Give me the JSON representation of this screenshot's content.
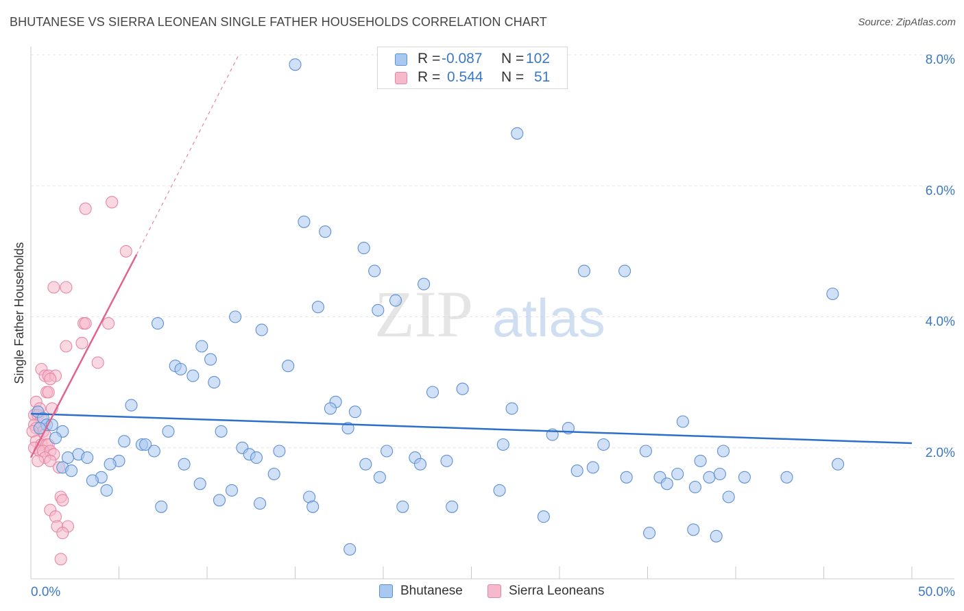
{
  "header": {
    "title": "BHUTANESE VS SIERRA LEONEAN SINGLE FATHER HOUSEHOLDS CORRELATION CHART",
    "source": "Source: ZipAtlas.com"
  },
  "watermark": {
    "zip": "ZIP",
    "atlas": "atlas"
  },
  "legend": {
    "rows": [
      {
        "r_label": "R =",
        "r_value": "-0.087",
        "n_label": "N =",
        "n_value": "102"
      },
      {
        "r_label": "R =",
        "r_value": "0.544",
        "n_label": "N =",
        "n_value": "51"
      }
    ],
    "bottom": [
      "Bhutanese",
      "Sierra Leoneans"
    ]
  },
  "colors": {
    "blue_fill": "#a9c8f0",
    "blue_stroke": "#5d8fd4",
    "blue_line": "#2c6fcb",
    "pink_fill": "#f6b8cb",
    "pink_stroke": "#e686a5",
    "pink_line": "#e0648e",
    "axis_label": "#3a78c4",
    "grid": "#e4e4e4"
  },
  "chart_data": {
    "type": "scatter",
    "title": "BHUTANESE VS SIERRA LEONEAN SINGLE FATHER HOUSEHOLDS CORRELATION CHART",
    "xlabel": "",
    "ylabel": "Single Father Households",
    "xlim": [
      0,
      50
    ],
    "ylim": [
      0,
      8
    ],
    "x_tick_labels": [
      "0.0%",
      "50.0%"
    ],
    "y_ticks": [
      2,
      4,
      6,
      8
    ],
    "y_tick_labels": [
      "2.0%",
      "4.0%",
      "6.0%",
      "8.0%"
    ],
    "grid": true,
    "series": [
      {
        "name": "Bhutanese",
        "R": -0.087,
        "N": 102,
        "trend": {
          "x": [
            0,
            50
          ],
          "y": [
            2.52,
            2.07
          ]
        },
        "points": [
          [
            15.0,
            7.85
          ],
          [
            27.6,
            6.8
          ],
          [
            15.5,
            5.45
          ],
          [
            16.7,
            5.3
          ],
          [
            18.9,
            5.05
          ],
          [
            19.5,
            4.7
          ],
          [
            22.3,
            4.5
          ],
          [
            31.4,
            4.7
          ],
          [
            33.7,
            4.7
          ],
          [
            45.5,
            4.35
          ],
          [
            20.7,
            4.25
          ],
          [
            16.3,
            4.15
          ],
          [
            19.7,
            4.1
          ],
          [
            11.6,
            4.0
          ],
          [
            7.2,
            3.9
          ],
          [
            13.1,
            3.8
          ],
          [
            9.7,
            3.55
          ],
          [
            10.2,
            3.35
          ],
          [
            14.6,
            3.25
          ],
          [
            8.2,
            3.25
          ],
          [
            8.5,
            3.2
          ],
          [
            9.2,
            3.1
          ],
          [
            10.4,
            3.0
          ],
          [
            24.5,
            2.9
          ],
          [
            22.8,
            2.85
          ],
          [
            17.3,
            2.7
          ],
          [
            5.7,
            2.65
          ],
          [
            17.0,
            2.6
          ],
          [
            18.4,
            2.55
          ],
          [
            27.3,
            2.6
          ],
          [
            37.0,
            2.4
          ],
          [
            0.4,
            2.55
          ],
          [
            0.7,
            2.45
          ],
          [
            0.9,
            2.35
          ],
          [
            1.2,
            2.35
          ],
          [
            0.5,
            2.3
          ],
          [
            1.8,
            2.25
          ],
          [
            7.8,
            2.25
          ],
          [
            10.8,
            2.25
          ],
          [
            18.0,
            2.3
          ],
          [
            30.5,
            2.3
          ],
          [
            29.6,
            2.2
          ],
          [
            1.4,
            2.15
          ],
          [
            5.3,
            2.1
          ],
          [
            6.3,
            2.05
          ],
          [
            6.5,
            2.05
          ],
          [
            26.8,
            2.05
          ],
          [
            32.5,
            2.05
          ],
          [
            12.0,
            2.0
          ],
          [
            7.0,
            1.95
          ],
          [
            14.1,
            1.95
          ],
          [
            20.2,
            1.95
          ],
          [
            34.9,
            1.95
          ],
          [
            39.3,
            1.95
          ],
          [
            2.7,
            1.9
          ],
          [
            12.4,
            1.9
          ],
          [
            12.8,
            1.85
          ],
          [
            2.1,
            1.85
          ],
          [
            3.2,
            1.85
          ],
          [
            21.8,
            1.85
          ],
          [
            5.0,
            1.8
          ],
          [
            23.6,
            1.8
          ],
          [
            38.0,
            1.8
          ],
          [
            4.5,
            1.75
          ],
          [
            8.7,
            1.75
          ],
          [
            19.0,
            1.75
          ],
          [
            22.1,
            1.75
          ],
          [
            45.8,
            1.75
          ],
          [
            1.8,
            1.7
          ],
          [
            2.3,
            1.65
          ],
          [
            13.8,
            1.6
          ],
          [
            31.0,
            1.65
          ],
          [
            31.9,
            1.7
          ],
          [
            36.7,
            1.6
          ],
          [
            38.5,
            1.55
          ],
          [
            35.7,
            1.55
          ],
          [
            39.1,
            1.6
          ],
          [
            40.5,
            1.55
          ],
          [
            42.9,
            1.55
          ],
          [
            33.8,
            1.55
          ],
          [
            4.0,
            1.55
          ],
          [
            19.8,
            1.55
          ],
          [
            3.5,
            1.5
          ],
          [
            9.6,
            1.45
          ],
          [
            36.1,
            1.45
          ],
          [
            37.7,
            1.4
          ],
          [
            26.6,
            1.35
          ],
          [
            11.4,
            1.35
          ],
          [
            4.3,
            1.35
          ],
          [
            15.8,
            1.25
          ],
          [
            10.7,
            1.2
          ],
          [
            13.0,
            1.15
          ],
          [
            16.0,
            1.1
          ],
          [
            7.4,
            1.1
          ],
          [
            21.1,
            1.1
          ],
          [
            23.9,
            1.1
          ],
          [
            39.6,
            1.25
          ],
          [
            29.1,
            0.95
          ],
          [
            35.1,
            0.7
          ],
          [
            37.6,
            0.75
          ],
          [
            38.9,
            0.65
          ],
          [
            18.1,
            0.45
          ]
        ]
      },
      {
        "name": "Sierra Leoneans",
        "R": 0.544,
        "N": 51,
        "trend": {
          "x": [
            0,
            6.0
          ],
          "y": [
            1.85,
            4.95
          ],
          "dashed_to": [
            11.8,
            8.0
          ]
        },
        "points": [
          [
            4.6,
            5.75
          ],
          [
            3.1,
            5.65
          ],
          [
            5.4,
            5.0
          ],
          [
            1.3,
            4.45
          ],
          [
            2.0,
            4.45
          ],
          [
            3.0,
            3.9
          ],
          [
            3.1,
            3.9
          ],
          [
            4.4,
            3.9
          ],
          [
            2.9,
            3.6
          ],
          [
            2.0,
            3.55
          ],
          [
            3.8,
            3.3
          ],
          [
            0.6,
            3.2
          ],
          [
            0.8,
            3.1
          ],
          [
            1.0,
            3.1
          ],
          [
            1.4,
            3.1
          ],
          [
            1.1,
            3.05
          ],
          [
            0.9,
            2.85
          ],
          [
            1.0,
            2.85
          ],
          [
            0.3,
            2.7
          ],
          [
            0.5,
            2.6
          ],
          [
            1.2,
            2.6
          ],
          [
            0.2,
            2.5
          ],
          [
            0.4,
            2.5
          ],
          [
            0.6,
            2.45
          ],
          [
            0.2,
            2.35
          ],
          [
            0.3,
            2.3
          ],
          [
            0.5,
            2.3
          ],
          [
            0.7,
            2.25
          ],
          [
            0.1,
            2.25
          ],
          [
            0.8,
            2.2
          ],
          [
            0.3,
            2.1
          ],
          [
            0.6,
            2.05
          ],
          [
            0.9,
            2.05
          ],
          [
            1.0,
            2.05
          ],
          [
            0.2,
            2.0
          ],
          [
            0.5,
            1.95
          ],
          [
            0.7,
            1.95
          ],
          [
            1.1,
            1.95
          ],
          [
            1.3,
            1.9
          ],
          [
            0.8,
            1.85
          ],
          [
            0.4,
            1.8
          ],
          [
            1.1,
            1.8
          ],
          [
            1.6,
            1.7
          ],
          [
            1.7,
            1.25
          ],
          [
            1.8,
            1.2
          ],
          [
            1.1,
            1.05
          ],
          [
            1.4,
            0.95
          ],
          [
            1.5,
            0.8
          ],
          [
            2.1,
            0.8
          ],
          [
            1.8,
            0.7
          ],
          [
            1.7,
            0.3
          ]
        ]
      }
    ]
  }
}
